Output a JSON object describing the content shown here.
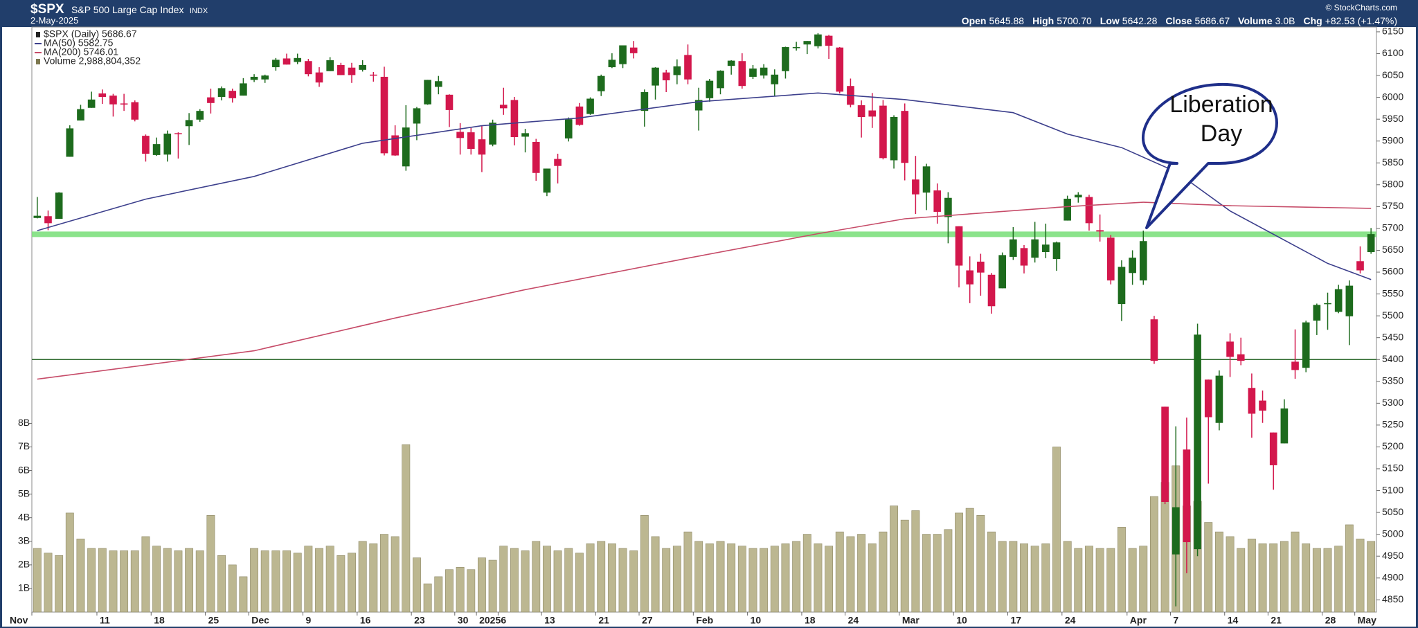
{
  "chart_data": {
    "type": "candlestick",
    "title": "$SPX",
    "subtitle": "S&P 500 Large Cap Index",
    "exchange": "INDX",
    "date": "2-May-2025",
    "credit": "© StockCharts.com",
    "quote": [
      {
        "label": "Open",
        "value": "5645.88"
      },
      {
        "label": "High",
        "value": "5700.70"
      },
      {
        "label": "Low",
        "value": "5642.28"
      },
      {
        "label": "Close",
        "value": "5686.67"
      },
      {
        "label": "Volume",
        "value": "3.0B"
      },
      {
        "label": "Chg",
        "value": "+82.53 (+1.47%)"
      }
    ],
    "annotation": "Liberation Day",
    "categories": [
      "Nov",
      null,
      null,
      null,
      null,
      null,
      "11",
      null,
      null,
      null,
      null,
      "18",
      null,
      null,
      null,
      null,
      "25",
      null,
      null,
      null,
      "Dec",
      null,
      null,
      null,
      null,
      "9",
      null,
      null,
      null,
      null,
      "16",
      null,
      null,
      null,
      null,
      "23",
      null,
      null,
      null,
      "30",
      null,
      "2025",
      null,
      "6",
      null,
      null,
      null,
      "13",
      null,
      null,
      null,
      null,
      "21",
      null,
      null,
      null,
      "27",
      null,
      null,
      null,
      null,
      "Feb",
      null,
      null,
      null,
      null,
      "10",
      null,
      null,
      null,
      null,
      "18",
      null,
      null,
      null,
      "24",
      null,
      null,
      null,
      null,
      "Mar",
      null,
      null,
      null,
      null,
      "10",
      null,
      null,
      null,
      null,
      "17",
      null,
      null,
      null,
      null,
      "24",
      null,
      null,
      null,
      null,
      null,
      "Apr",
      null,
      null,
      null,
      "7",
      null,
      null,
      null,
      null,
      "14",
      null,
      null,
      null,
      "21",
      null,
      null,
      null,
      null,
      "28",
      null,
      null,
      "May",
      null
    ],
    "ylim": [
      4822,
      6161
    ],
    "yticks": [
      4850,
      4900,
      4950,
      5000,
      5050,
      5100,
      5150,
      5200,
      5250,
      5300,
      5350,
      5400,
      5450,
      5500,
      5550,
      5600,
      5650,
      5700,
      5750,
      5800,
      5850,
      5900,
      5950,
      6000,
      6050,
      6100,
      6150
    ],
    "y2lim": [
      0,
      24.8
    ],
    "y2ticks": [
      {
        "value": 1,
        "label": "1B"
      },
      {
        "value": 2,
        "label": "2B"
      },
      {
        "value": 3,
        "label": "3B"
      },
      {
        "value": 4,
        "label": "4B"
      },
      {
        "value": 5,
        "label": "5B"
      },
      {
        "value": 6,
        "label": "6B"
      },
      {
        "value": 7,
        "label": "7B"
      },
      {
        "value": 8,
        "label": "8B"
      }
    ],
    "grid": false,
    "up_color": "#1d6b1d",
    "down_color": "#d3174c",
    "series": [
      {
        "name": "$SPX (Daily) 5686.67",
        "open": [
          5724,
          5728,
          5722,
          5864,
          5947,
          5976,
          6009,
          6004,
          5986,
          5989,
          5912,
          5868,
          5869,
          5918,
          5934,
          5949,
          6000,
          6001,
          6015,
          6004,
          6040,
          6041,
          6069,
          6089,
          6081,
          6083,
          6057,
          6060,
          6074,
          6068,
          6063,
          6052,
          6047,
          5913,
          5842,
          5940,
          5984,
          6024,
          6006,
          5921,
          5920,
          5904,
          5892,
          5983,
          5994,
          5910,
          5898,
          5782,
          5859,
          5906,
          5979,
          5962,
          6014,
          6069,
          6076,
          6114,
          5969,
          6027,
          6057,
          6051,
          6097,
          5970,
          5998,
          6021,
          6072,
          6083,
          6047,
          6050,
          6030,
          6060,
          6115,
          6121,
          6117,
          6141,
          6114,
          6026,
          5982,
          5970,
          5981,
          5856,
          5969,
          5812,
          5782,
          5787,
          5726,
          5705,
          5604,
          5624,
          5594,
          5563,
          5635,
          5655,
          5633,
          5646,
          5630,
          5718,
          5771,
          5772,
          5696,
          5679,
          5527,
          5598,
          5581,
          5492,
          5292,
          4954,
          5194,
          4966,
          5354,
          5255,
          5441,
          5412,
          5335,
          5306,
          5233,
          5208,
          5395,
          5381,
          5489,
          5529,
          5509,
          5499,
          5625,
          5646
        ],
        "high": [
          5772,
          5741,
          5783,
          5936,
          5983,
          6013,
          6018,
          6008,
          6008,
          5993,
          5915,
          5908,
          5924,
          5920,
          5964,
          5973,
          6020,
          6025,
          6020,
          6044,
          6053,
          6052,
          6090,
          6100,
          6100,
          6088,
          6069,
          6092,
          6079,
          6079,
          6085,
          6058,
          6070,
          5936,
          5982,
          5978,
          6040,
          6049,
          6007,
          5941,
          5930,
          5935,
          5949,
          6022,
          6001,
          5928,
          5905,
          5837,
          5871,
          5954,
          5987,
          6000,
          6052,
          6101,
          6119,
          6129,
          6018,
          6069,
          6063,
          6087,
          6121,
          6022,
          6042,
          6062,
          6085,
          6101,
          6074,
          6076,
          6064,
          6116,
          6127,
          6129,
          6147,
          6143,
          6115,
          6043,
          5993,
          6010,
          5994,
          5959,
          5986,
          5866,
          5848,
          5803,
          5783,
          5705,
          5636,
          5642,
          5598,
          5645,
          5703,
          5662,
          5715,
          5711,
          5670,
          5775,
          5783,
          5777,
          5732,
          5685,
          5627,
          5650,
          5695,
          5500,
          5292,
          5247,
          5267,
          5482,
          5354,
          5375,
          5460,
          5450,
          5368,
          5329,
          5233,
          5309,
          5469,
          5489,
          5528,
          5553,
          5571,
          5581,
          5659,
          5701
        ],
        "low": [
          5723,
          5696,
          5722,
          5864,
          5947,
          5976,
          5985,
          5956,
          5969,
          5945,
          5853,
          5866,
          5853,
          5860,
          5891,
          5944,
          5963,
          5993,
          5988,
          6004,
          6035,
          6033,
          6061,
          6075,
          6076,
          6048,
          6024,
          6060,
          6051,
          6033,
          6059,
          6036,
          5867,
          5866,
          5832,
          5902,
          5983,
          6007,
          5932,
          5869,
          5869,
          5829,
          5888,
          5960,
          5890,
          5874,
          5809,
          5774,
          5803,
          5899,
          5935,
          5960,
          6003,
          6067,
          6067,
          6089,
          5933,
          5995,
          6012,
          6030,
          6030,
          5924,
          5990,
          6007,
          6052,
          6020,
          6042,
          6043,
          6003,
          6043,
          6107,
          6099,
          6112,
          6088,
          6009,
          5977,
          5908,
          5930,
          5858,
          5837,
          5810,
          5733,
          5742,
          5711,
          5666,
          5565,
          5529,
          5546,
          5505,
          5563,
          5628,
          5597,
          5622,
          5632,
          5603,
          5718,
          5759,
          5695,
          5670,
          5572,
          5488,
          5571,
          5571,
          5390,
          5069,
          4835,
          4911,
          4950,
          5116,
          5238,
          5360,
          5387,
          5221,
          5255,
          5102,
          5208,
          5356,
          5371,
          5456,
          5468,
          5506,
          5433,
          5597,
          5642
        ],
        "close": [
          5729,
          5712,
          5782,
          5929,
          5973,
          5995,
          6001,
          5984,
          5985,
          5949,
          5871,
          5893,
          5917,
          5917,
          5948,
          5969,
          5987,
          6021,
          5998,
          6032,
          6047,
          6050,
          6086,
          6075,
          6090,
          6053,
          6034,
          6085,
          6051,
          6051,
          6074,
          6050,
          5872,
          5867,
          5931,
          5975,
          6040,
          6037,
          5971,
          5907,
          5882,
          5869,
          5942,
          5975,
          5909,
          5918,
          5827,
          5837,
          5843,
          5950,
          5937,
          5997,
          6049,
          6086,
          6119,
          6101,
          6012,
          6068,
          6039,
          6071,
          6041,
          5994,
          6038,
          6061,
          6084,
          6026,
          6066,
          6068,
          6052,
          6115,
          6115,
          6129,
          6144,
          6118,
          6013,
          5983,
          5955,
          5956,
          5861,
          5955,
          5850,
          5778,
          5842,
          5738,
          5770,
          5615,
          5572,
          5599,
          5522,
          5639,
          5675,
          5615,
          5675,
          5663,
          5668,
          5768,
          5777,
          5712,
          5693,
          5581,
          5612,
          5633,
          5671,
          5397,
          5074,
          5062,
          4982,
          5457,
          5268,
          5363,
          5406,
          5397,
          5276,
          5283,
          5158,
          5288,
          5376,
          5485,
          5525,
          5529,
          5561,
          5569,
          5604,
          5687
        ]
      },
      {
        "name": "MA(50) 5582.75",
        "type": "line",
        "color": "#3c3f8c",
        "x": [
          0,
          10,
          20,
          30,
          41,
          50,
          61,
          72,
          80,
          90,
          95,
          100,
          105,
          110,
          119,
          123
        ],
        "values": [
          5695,
          5767,
          5819,
          5895,
          5935,
          5953,
          5990,
          6010,
          5995,
          5965,
          5916,
          5885,
          5830,
          5740,
          5620,
          5583
        ]
      },
      {
        "name": "MA(200) 5746.01",
        "type": "line",
        "color": "#c64b68",
        "x": [
          0,
          20,
          33,
          45,
          60,
          72,
          80,
          95,
          102,
          110,
          123
        ],
        "values": [
          5355,
          5420,
          5495,
          5560,
          5632,
          5688,
          5722,
          5750,
          5760,
          5752,
          5746
        ]
      },
      {
        "name": "Volume 2,988,804,352",
        "type": "bar",
        "axis": "y2",
        "color": "#bcb791",
        "values": [
          2.7,
          2.5,
          2.4,
          4.2,
          3.1,
          2.7,
          2.7,
          2.6,
          2.6,
          2.6,
          3.2,
          2.8,
          2.7,
          2.6,
          2.7,
          2.6,
          4.1,
          2.4,
          2.0,
          1.5,
          2.7,
          2.6,
          2.6,
          2.6,
          2.5,
          2.8,
          2.7,
          2.8,
          2.4,
          2.5,
          3.0,
          2.9,
          3.3,
          3.2,
          7.1,
          2.3,
          1.2,
          1.5,
          1.8,
          1.9,
          1.8,
          2.3,
          2.2,
          2.8,
          2.7,
          2.6,
          3.0,
          2.8,
          2.6,
          2.7,
          2.5,
          2.9,
          3.0,
          2.9,
          2.7,
          2.6,
          4.1,
          3.2,
          2.7,
          2.8,
          3.4,
          3.0,
          2.9,
          3.0,
          2.9,
          2.8,
          2.7,
          2.7,
          2.8,
          2.9,
          3.0,
          3.3,
          2.9,
          2.8,
          3.4,
          3.2,
          3.3,
          2.9,
          3.4,
          4.5,
          3.9,
          4.3,
          3.3,
          3.3,
          3.5,
          4.2,
          4.4,
          4.1,
          3.4,
          3.0,
          3.0,
          2.9,
          2.8,
          2.9,
          7.0,
          3.0,
          2.7,
          2.8,
          2.7,
          2.7,
          3.6,
          2.7,
          2.8,
          4.9,
          5.5,
          6.2,
          4.5,
          4.7,
          3.8,
          3.4,
          3.2,
          2.7,
          3.1,
          2.9,
          2.9,
          3.0,
          3.4,
          2.9,
          2.7,
          2.7,
          2.8,
          3.7,
          3.1,
          3.0
        ]
      }
    ],
    "hlines": [
      {
        "value": 5686.67,
        "color": "#7fe07f"
      },
      {
        "value": 5400,
        "color": "#2f6b2f"
      }
    ]
  }
}
